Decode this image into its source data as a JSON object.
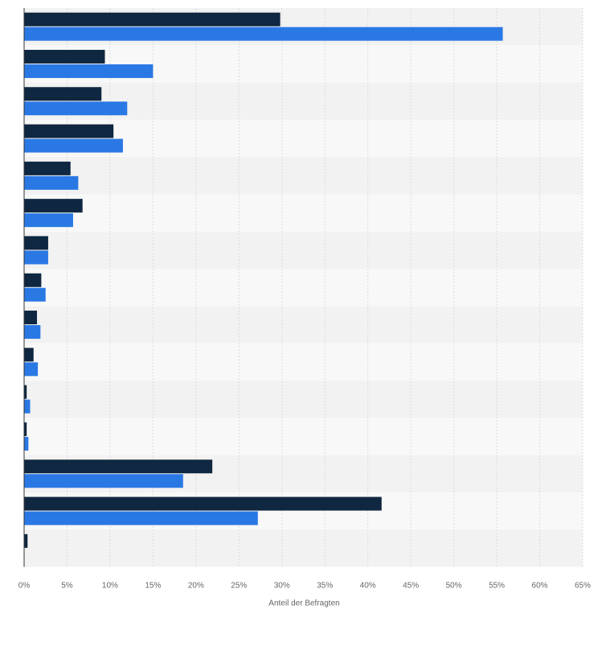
{
  "chart_data": {
    "type": "bar",
    "orientation": "horizontal",
    "title": "",
    "xlabel": "Anteil der Befragten",
    "ylabel": "",
    "xlim": [
      0,
      65
    ],
    "x_ticks": [
      0,
      5,
      10,
      15,
      20,
      25,
      30,
      35,
      40,
      45,
      50,
      55,
      60,
      65
    ],
    "x_tick_format": "{v}%",
    "grid": "vertical dashed",
    "category_labels_visible": false,
    "category_count": 15,
    "series": [
      {
        "color": "#0f2740",
        "values": [
          29.8,
          9.4,
          9.0,
          10.4,
          5.4,
          6.8,
          2.8,
          2.0,
          1.5,
          1.1,
          0.3,
          0.3,
          21.9,
          41.6,
          0.4
        ]
      },
      {
        "color": "#2a78e4",
        "values": [
          55.7,
          15.0,
          12.0,
          11.5,
          6.3,
          5.7,
          2.8,
          2.5,
          1.9,
          1.6,
          0.7,
          0.5,
          18.5,
          27.2,
          null
        ]
      }
    ]
  }
}
